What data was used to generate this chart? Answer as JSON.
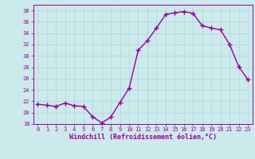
{
  "x": [
    0,
    1,
    2,
    3,
    4,
    5,
    6,
    7,
    8,
    9,
    10,
    11,
    12,
    13,
    14,
    15,
    16,
    17,
    18,
    19,
    20,
    21,
    22,
    23
  ],
  "y": [
    21.5,
    21.3,
    21.1,
    21.7,
    21.2,
    21.1,
    19.3,
    18.2,
    19.2,
    21.8,
    24.3,
    31.0,
    32.7,
    34.9,
    37.3,
    37.6,
    37.8,
    37.5,
    35.3,
    34.9,
    34.6,
    32.0,
    28.1,
    25.8
  ],
  "line_color": "#990099",
  "marker": "+",
  "marker_size": 4,
  "linewidth": 1.0,
  "bg_color": "#cce9ec",
  "grid_color": "#b0d5d8",
  "title": "Windchill (Refroidissement éolien,°C)",
  "xlabel": "Windchill (Refroidissement éolien,°C)",
  "ylim": [
    18,
    39
  ],
  "yticks": [
    18,
    20,
    22,
    24,
    26,
    28,
    30,
    32,
    34,
    36,
    38
  ],
  "xticks": [
    0,
    1,
    2,
    3,
    4,
    5,
    6,
    7,
    8,
    9,
    10,
    11,
    12,
    13,
    14,
    15,
    16,
    17,
    18,
    19,
    20,
    21,
    22,
    23
  ],
  "tick_color": "#990099",
  "tick_fontsize": 5.0,
  "xlabel_fontsize": 6.0,
  "xlabel_color": "#990099",
  "spine_color": "#990099"
}
